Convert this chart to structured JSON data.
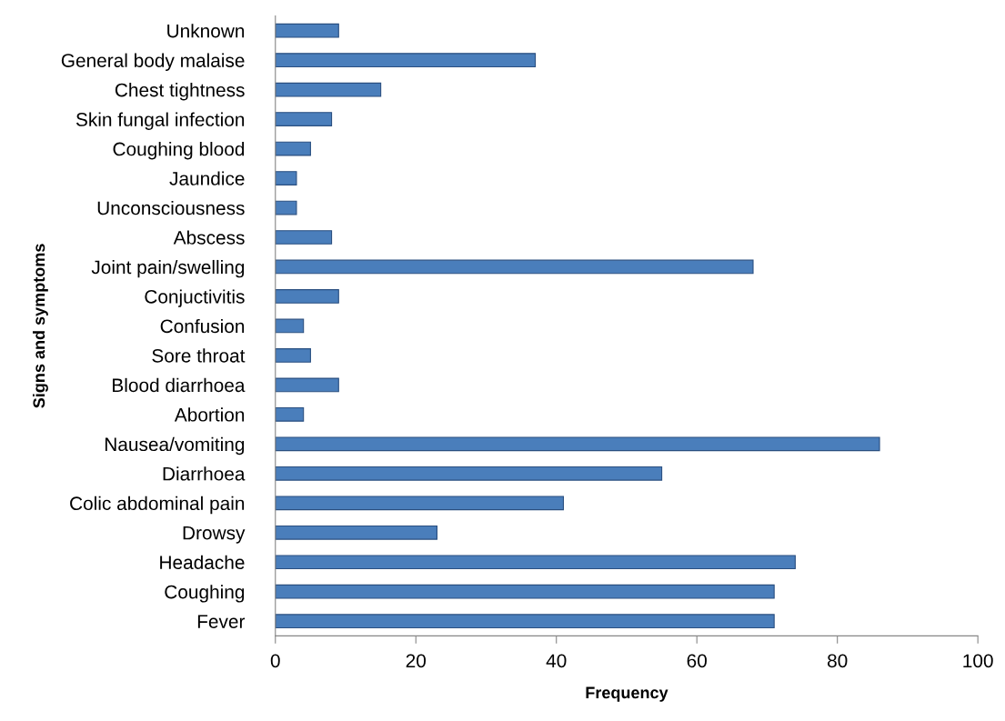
{
  "chart_data": {
    "type": "bar",
    "orientation": "horizontal",
    "xlabel": "Frequency",
    "ylabel": "Signs and symptoms",
    "categories": [
      "Unknown",
      "General body malaise",
      "Chest tightness",
      "Skin fungal infection",
      "Coughing blood",
      "Jaundice",
      "Unconsciousness",
      "Abscess",
      "Joint pain/swelling",
      "Conjuctivitis",
      "Confusion",
      "Sore throat",
      "Blood diarrhoea",
      "Abortion",
      "Nausea/vomiting",
      "Diarrhoea",
      "Colic abdominal pain",
      "Drowsy",
      "Headache",
      "Coughing",
      "Fever"
    ],
    "values": [
      9,
      37,
      15,
      8,
      5,
      3,
      3,
      8,
      68,
      9,
      4,
      5,
      9,
      4,
      86,
      55,
      41,
      23,
      74,
      71,
      71
    ],
    "color": "#4a7ebb",
    "xlim": [
      0,
      100
    ],
    "xticks": [
      0,
      20,
      40,
      60,
      80,
      100
    ],
    "grid": false,
    "legend": false
  }
}
